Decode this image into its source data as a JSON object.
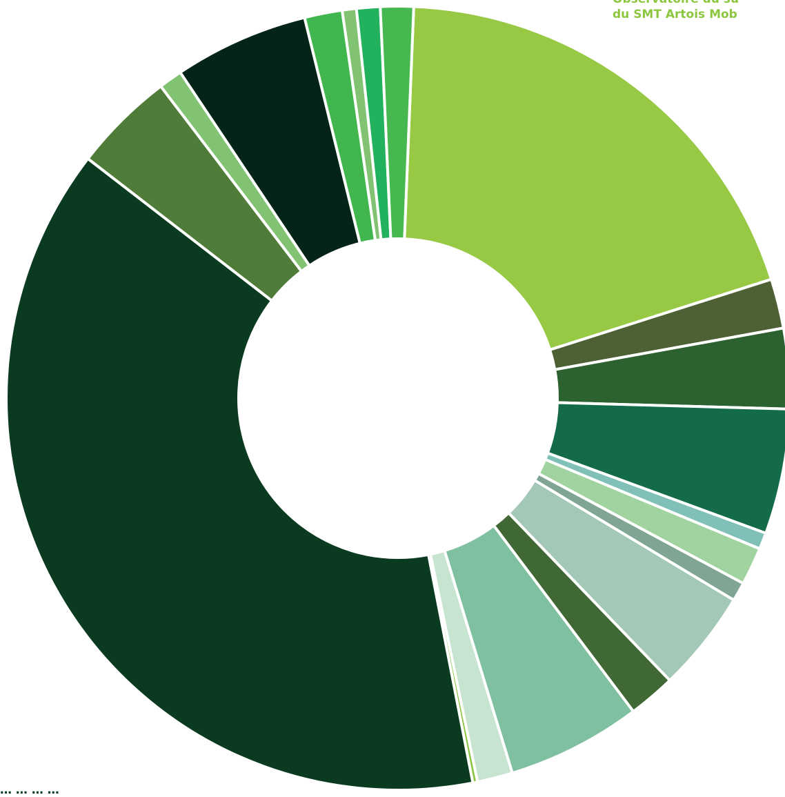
{
  "source": {
    "line1": "Observatoire du su",
    "line2": "du SMT Artois Mob"
  },
  "footnote": "… … … …",
  "chart_data": {
    "type": "donut",
    "title": "",
    "legend": "none",
    "slices": [
      {
        "value": 20.0,
        "color": "#97c945"
      },
      {
        "value": 2.1,
        "color": "#4e6134"
      },
      {
        "value": 3.4,
        "color": "#2c6130"
      },
      {
        "value": 5.3,
        "color": "#136b49"
      },
      {
        "value": 0.7,
        "color": "#80c0b8"
      },
      {
        "value": 1.6,
        "color": "#a0d3a0"
      },
      {
        "value": 0.8,
        "color": "#80a594"
      },
      {
        "value": 4.3,
        "color": "#a4c8b7"
      },
      {
        "value": 2.0,
        "color": "#406834"
      },
      {
        "value": 5.7,
        "color": "#7fc0a1"
      },
      {
        "value": 1.5,
        "color": "#c7e4d0"
      },
      {
        "value": 0.2,
        "color": "#8cc540"
      },
      {
        "value": 39.6,
        "color": "#0a3b20"
      },
      {
        "value": 4.3,
        "color": "#507c3a"
      },
      {
        "value": 1.0,
        "color": "#82c373"
      },
      {
        "value": 5.7,
        "color": "#032417"
      },
      {
        "value": 1.6,
        "color": "#41b64e"
      },
      {
        "value": 0.6,
        "color": "#82c373"
      },
      {
        "value": 1.0,
        "color": "#22b15d"
      },
      {
        "value": 1.4,
        "color": "#47b84f"
      }
    ]
  }
}
